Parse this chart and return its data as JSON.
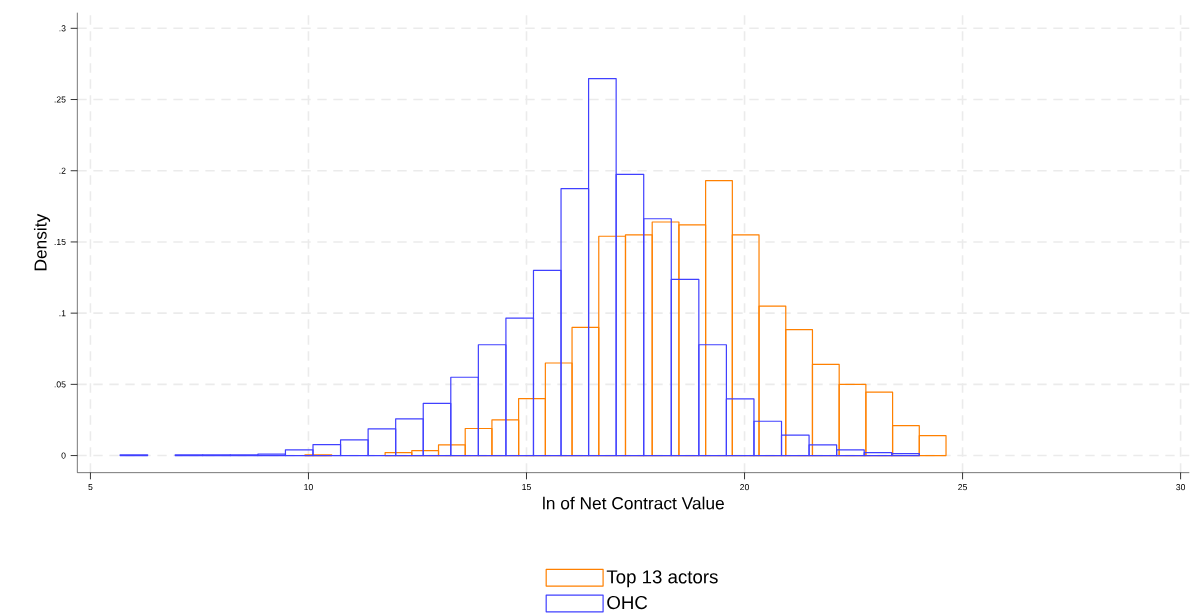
{
  "chart_data": {
    "type": "bar",
    "xlabel": "ln of Net Contract Value",
    "ylabel": "Density",
    "xlim": [
      4.7,
      30.2
    ],
    "ylim": [
      -0.012,
      0.311
    ],
    "xticks": [
      5,
      10,
      15,
      20,
      25,
      30
    ],
    "yticks": [
      {
        "value": 0,
        "label": "0"
      },
      {
        "value": 0.05,
        "label": ".05"
      },
      {
        "value": 0.1,
        "label": ".1"
      },
      {
        "value": 0.15,
        "label": ".15"
      },
      {
        "value": 0.2,
        "label": ".2"
      },
      {
        "value": 0.25,
        "label": ".25"
      },
      {
        "value": 0.3,
        "label": ".3"
      }
    ],
    "grid": true,
    "legend": "bottom",
    "series": [
      {
        "name": "Top 13 actors",
        "color": "#ff8000",
        "x": [
          10.226,
          10.839,
          11.451,
          12.064,
          12.676,
          13.289,
          13.901,
          14.514,
          15.126,
          15.739,
          16.351,
          16.964,
          17.576,
          18.189,
          18.801,
          19.414,
          20.026,
          20.639,
          21.251,
          21.864,
          22.476,
          23.089,
          23.701,
          24.314
        ],
        "values": [
          0.0005,
          null,
          null,
          0.002,
          0.0035,
          0.0075,
          0.019,
          0.025,
          0.04,
          0.065,
          0.09,
          0.154,
          0.155,
          0.164,
          0.162,
          0.193,
          0.155,
          0.105,
          0.0885,
          0.064,
          0.05,
          0.0445,
          0.021,
          0.014
        ]
      },
      {
        "name": "OHC",
        "color": "#4040ff",
        "x": [
          5.996,
          6.628,
          7.26,
          7.892,
          8.524,
          9.156,
          9.788,
          10.42,
          11.052,
          11.684,
          12.316,
          12.948,
          13.58,
          14.212,
          14.844,
          15.476,
          16.108,
          16.74,
          17.372,
          18.004,
          18.636,
          19.268,
          19.9,
          20.532,
          21.164,
          21.796,
          22.428,
          23.06,
          23.692
        ],
        "values": [
          0.0005,
          null,
          0.0005,
          0.0005,
          0.0005,
          0.001,
          0.004,
          0.0077,
          0.011,
          0.0188,
          0.0258,
          0.0366,
          0.055,
          0.0778,
          0.0965,
          0.13,
          0.1874,
          0.2647,
          0.1975,
          0.1663,
          0.1237,
          0.0778,
          0.0398,
          0.0241,
          0.0143,
          0.0075,
          0.004,
          0.002,
          0.0013
        ]
      }
    ]
  }
}
